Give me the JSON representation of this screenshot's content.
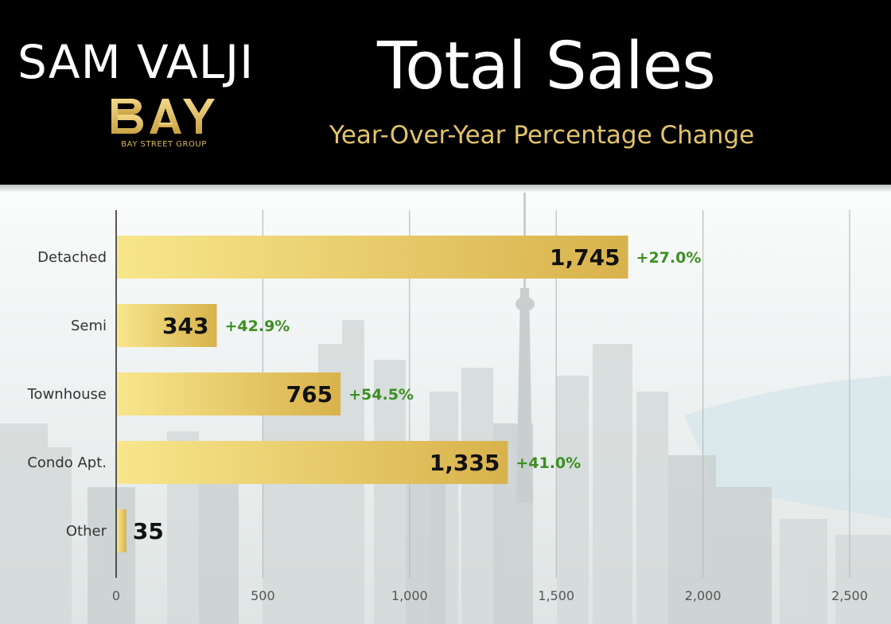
{
  "header": {
    "brand_name": "SAM VALJI",
    "brand_logo_text": "BAY",
    "brand_subtitle": "BAY STREET GROUP",
    "title": "Total Sales",
    "subtitle": "Year-Over-Year Percentage Change"
  },
  "colors": {
    "header_bg": "#000000",
    "gold": "#e3c46a",
    "bar_light": "#f7e489",
    "bar_dark": "#d9b34c",
    "positive_change": "#3c8f24"
  },
  "chart_data": {
    "type": "bar",
    "orientation": "horizontal",
    "categories": [
      "Detached",
      "Semi",
      "Townhouse",
      "Condo Apt.",
      "Other"
    ],
    "values": [
      1745,
      343,
      765,
      1335,
      35
    ],
    "value_labels": [
      "1,745",
      "343",
      "765",
      "1,335",
      "35"
    ],
    "changes": [
      "+27.0%",
      "+42.9%",
      "+54.5%",
      "+41.0%",
      ""
    ],
    "xlim": [
      0,
      2500
    ],
    "xticks": [
      0,
      500,
      1000,
      1500,
      2000,
      2500
    ],
    "xtick_labels": [
      "0",
      "500",
      "1,000",
      "1,500",
      "2,000",
      "2,500"
    ],
    "title": "Total Sales",
    "subtitle": "Year-Over-Year Percentage Change",
    "xlabel": "",
    "ylabel": "",
    "grid": true,
    "legend": "none"
  }
}
